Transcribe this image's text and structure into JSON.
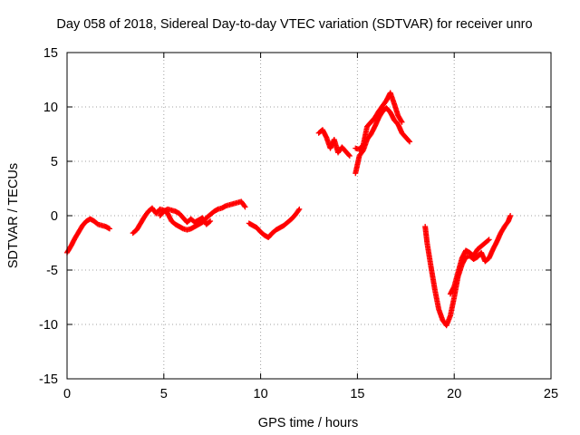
{
  "chart_data": {
    "type": "scatter",
    "title": "Day 058 of 2018, Sidereal Day-to-day VTEC variation (SDTVAR) for receiver unro",
    "xlabel": "GPS time / hours",
    "ylabel": "SDTVAR / TECUs",
    "xlim": [
      0,
      25
    ],
    "ylim": [
      -15,
      15
    ],
    "xticks": [
      0,
      5,
      10,
      15,
      20,
      25
    ],
    "yticks": [
      -15,
      -10,
      -5,
      0,
      5,
      10,
      15
    ],
    "grid": true,
    "marker": "+",
    "marker_color": "#ff0000",
    "series": [
      {
        "x": [
          0.0,
          0.2,
          0.4,
          0.6,
          0.8,
          1.0,
          1.2,
          1.4,
          1.6,
          1.8,
          2.0,
          2.2
        ],
        "y": [
          -3.4,
          -2.8,
          -2.1,
          -1.5,
          -0.9,
          -0.5,
          -0.3,
          -0.5,
          -0.8,
          -0.9,
          -1.0,
          -1.2
        ]
      },
      {
        "x": [
          3.4,
          3.6,
          3.8,
          4.0,
          4.2,
          4.4,
          4.6,
          4.8,
          5.0,
          5.2,
          5.4,
          5.6,
          5.8,
          6.0,
          6.2,
          6.4,
          6.6,
          6.8,
          7.0,
          7.2,
          7.4,
          7.6,
          7.8,
          8.0,
          8.2,
          8.4,
          8.6,
          8.8,
          9.0,
          9.2
        ],
        "y": [
          -1.6,
          -1.3,
          -0.7,
          -0.1,
          0.4,
          0.7,
          0.2,
          0.6,
          0.5,
          0.2,
          -0.5,
          -0.8,
          -1.0,
          -1.2,
          -1.3,
          -1.2,
          -1.0,
          -0.8,
          -0.6,
          -0.2,
          0.1,
          0.4,
          0.6,
          0.7,
          0.9,
          1.0,
          1.1,
          1.2,
          1.3,
          0.8
        ]
      },
      {
        "x": [
          4.8,
          5.0,
          5.2,
          5.4,
          5.6,
          5.8,
          6.0,
          6.2,
          6.4,
          6.6,
          6.8,
          7.0,
          7.2,
          7.4
        ],
        "y": [
          0.0,
          0.4,
          0.6,
          0.5,
          0.4,
          0.2,
          -0.2,
          -0.6,
          -0.3,
          -0.6,
          -0.4,
          -0.2,
          -0.8,
          -0.5
        ]
      },
      {
        "x": [
          9.4,
          9.6,
          9.8,
          10.0,
          10.2,
          10.4,
          10.6,
          10.8,
          11.0,
          11.2,
          11.4,
          11.6,
          11.8,
          12.0
        ],
        "y": [
          -0.7,
          -0.9,
          -1.1,
          -1.5,
          -1.8,
          -2.0,
          -1.6,
          -1.3,
          -1.1,
          -0.9,
          -0.6,
          -0.3,
          0.1,
          0.6
        ]
      },
      {
        "x": [
          13.0,
          13.2,
          13.4,
          13.6,
          13.8,
          14.0,
          14.2,
          14.4,
          14.6
        ],
        "y": [
          7.6,
          7.9,
          7.2,
          6.2,
          7.0,
          5.8,
          6.3,
          5.9,
          5.5
        ]
      },
      {
        "x": [
          14.9,
          15.1,
          15.3,
          15.5,
          15.7,
          15.9,
          16.1,
          16.3,
          16.5,
          16.7,
          16.9,
          17.1,
          17.3,
          17.5,
          17.7
        ],
        "y": [
          3.9,
          5.5,
          6.0,
          7.0,
          7.5,
          8.2,
          9.0,
          9.6,
          9.9,
          9.5,
          8.8,
          8.4,
          7.6,
          7.2,
          6.8
        ]
      },
      {
        "x": [
          14.9,
          15.1,
          15.3,
          15.5,
          15.7,
          15.9,
          16.1,
          16.3,
          16.5,
          16.7,
          16.9,
          17.1,
          17.3
        ],
        "y": [
          6.2,
          6.1,
          6.5,
          8.2,
          8.6,
          9.0,
          9.6,
          10.1,
          10.6,
          11.3,
          10.3,
          9.2,
          8.6
        ]
      },
      {
        "x": [
          18.5,
          18.6,
          18.8,
          19.0,
          19.2,
          19.4,
          19.6,
          19.8,
          20.0,
          20.2,
          20.4,
          20.6,
          20.8,
          21.0,
          21.2,
          21.4,
          21.6,
          21.8,
          22.0,
          22.2,
          22.4,
          22.6,
          22.8,
          22.9
        ],
        "y": [
          -1.0,
          -2.5,
          -4.7,
          -6.8,
          -8.6,
          -9.6,
          -10.1,
          -9.2,
          -7.5,
          -5.6,
          -4.5,
          -3.8,
          -3.7,
          -4.0,
          -3.8,
          -3.4,
          -4.2,
          -3.9,
          -3.1,
          -2.4,
          -1.6,
          -1.0,
          -0.5,
          0.0
        ]
      },
      {
        "x": [
          19.8,
          20.0,
          20.2,
          20.4,
          20.6,
          20.8,
          21.0,
          21.2,
          21.4,
          21.6,
          21.8
        ],
        "y": [
          -7.2,
          -6.5,
          -5.2,
          -3.9,
          -3.2,
          -3.4,
          -3.7,
          -3.1,
          -2.8,
          -2.5,
          -2.2
        ]
      }
    ]
  }
}
